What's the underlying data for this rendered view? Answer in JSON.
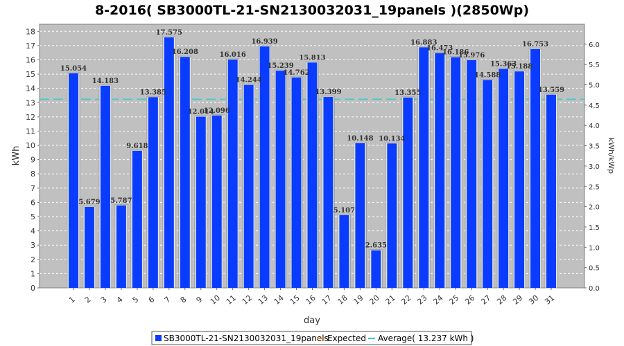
{
  "chart_data": {
    "type": "bar",
    "title": "8-2016( SB3000TL-21-SN2130032031_19panels )(2850Wp)",
    "xlabel": "day",
    "ylabel": "kWh",
    "y2label": "kWh/kWp",
    "ylim": [
      0,
      18.5
    ],
    "y2lim": [
      0,
      6.491
    ],
    "yticks": [
      0,
      1,
      2,
      3,
      4,
      5,
      6,
      7,
      8,
      9,
      10,
      11,
      12,
      13,
      14,
      15,
      16,
      17,
      18
    ],
    "y2ticks": [
      0.0,
      0.5,
      1.0,
      1.5,
      2.0,
      2.5,
      3.0,
      3.5,
      4.0,
      4.5,
      5.0,
      5.5,
      6.0
    ],
    "y2tick_labels": [
      "0.0",
      "0.5",
      "1.0",
      "1.5",
      "2.0",
      "2.5",
      "3.0",
      "3.5",
      "4.0",
      "4.5",
      "5.0",
      "5.5",
      "6.0"
    ],
    "categories": [
      "1",
      "2",
      "3",
      "4",
      "5",
      "6",
      "7",
      "8",
      "9",
      "10",
      "11",
      "12",
      "13",
      "14",
      "15",
      "16",
      "17",
      "18",
      "19",
      "20",
      "21",
      "22",
      "23",
      "24",
      "25",
      "26",
      "27",
      "28",
      "29",
      "30",
      "31"
    ],
    "series": [
      {
        "name": "SB3000TL-21-SN2130032031_19panels",
        "color": "#0a3cff",
        "values": [
          15.054,
          5.679,
          14.183,
          5.787,
          9.618,
          13.385,
          17.575,
          16.208,
          12.014,
          12.096,
          16.016,
          14.244,
          16.939,
          15.239,
          14.762,
          15.813,
          13.399,
          5.107,
          10.148,
          2.635,
          10.134,
          13.355,
          16.883,
          16.473,
          16.186,
          15.976,
          14.588,
          15.363,
          15.188,
          16.753,
          13.559
        ],
        "labels": [
          "15.054",
          "5.679",
          "14.183",
          "5.787",
          "9.618",
          "13.385",
          "17.575",
          "16.208",
          "12.014",
          "12.096",
          "16.016",
          "14.244",
          "16.939",
          "15.239",
          "14.762",
          "15.813",
          "13.399",
          "5.107",
          "10.148",
          "2.635",
          "10.134",
          "13.355",
          "16.883",
          "16.473",
          "16.186",
          "15.976",
          "14.588",
          "15.363",
          "15.188",
          "16.753",
          "13.559"
        ]
      }
    ],
    "average": 13.237,
    "average_color": "#33cccc",
    "expected_color": "#ff8800",
    "grid": true,
    "legend_position": "bottom",
    "legend": [
      {
        "key": "series",
        "label": "SB3000TL-21-SN2130032031_19panels"
      },
      {
        "key": "expected",
        "label": "Expected"
      },
      {
        "key": "average",
        "label": "Average( 13.237 kWh )"
      }
    ]
  }
}
